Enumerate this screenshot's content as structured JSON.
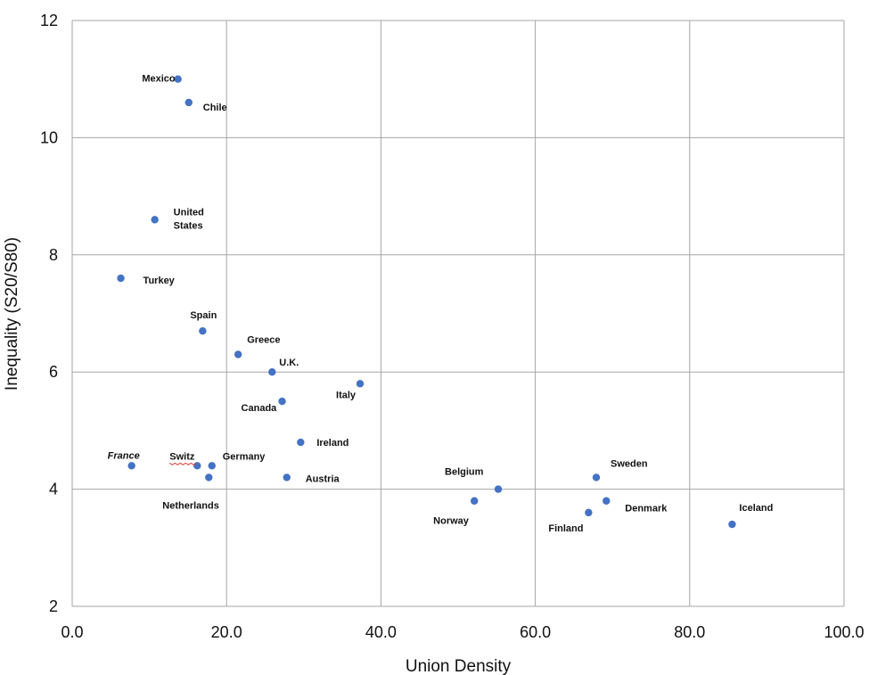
{
  "chart_data": {
    "type": "scatter",
    "xlabel": "Union Density",
    "ylabel": "Inequality (S20/S80)",
    "xlim": [
      0,
      100
    ],
    "ylim": [
      2,
      12
    ],
    "x_ticks": [
      "0.0",
      "20.0",
      "40.0",
      "60.0",
      "80.0",
      "100.0"
    ],
    "y_ticks": [
      "2",
      "4",
      "6",
      "8",
      "10",
      "12"
    ],
    "grid": true,
    "legend": "none",
    "colors": {
      "point": "#4472c4",
      "grid": "#a6a6a6",
      "spell_underline": "#e23b3b"
    },
    "points": [
      {
        "label": "Mexico",
        "x": 13.7,
        "y": 11.0
      },
      {
        "label": "Chile",
        "x": 15.1,
        "y": 10.6
      },
      {
        "label": "United\nStates",
        "x": 10.7,
        "y": 8.6
      },
      {
        "label": "Turkey",
        "x": 6.3,
        "y": 7.6
      },
      {
        "label": "Spain",
        "x": 16.9,
        "y": 6.7
      },
      {
        "label": "Greece",
        "x": 21.5,
        "y": 6.3
      },
      {
        "label": "U.K.",
        "x": 25.9,
        "y": 6.0
      },
      {
        "label": "Italy",
        "x": 37.3,
        "y": 5.8
      },
      {
        "label": "Canada",
        "x": 27.2,
        "y": 5.5
      },
      {
        "label": "Ireland",
        "x": 29.6,
        "y": 4.8
      },
      {
        "label": "France",
        "x": 7.7,
        "y": 4.4,
        "italic": true
      },
      {
        "label": "Switz",
        "x": 16.2,
        "y": 4.4,
        "underline": true
      },
      {
        "label": "Germany",
        "x": 18.1,
        "y": 4.4
      },
      {
        "label": "Netherlands",
        "x": 17.7,
        "y": 4.2
      },
      {
        "label": "Austria",
        "x": 27.8,
        "y": 4.2
      },
      {
        "label": "Belgium",
        "x": 55.2,
        "y": 4.0
      },
      {
        "label": "Norway",
        "x": 52.1,
        "y": 3.8
      },
      {
        "label": "Sweden",
        "x": 67.9,
        "y": 4.2
      },
      {
        "label": "Denmark",
        "x": 69.2,
        "y": 3.8
      },
      {
        "label": "Finland",
        "x": 66.9,
        "y": 3.6
      },
      {
        "label": "Iceland",
        "x": 85.5,
        "y": 3.4
      }
    ]
  }
}
